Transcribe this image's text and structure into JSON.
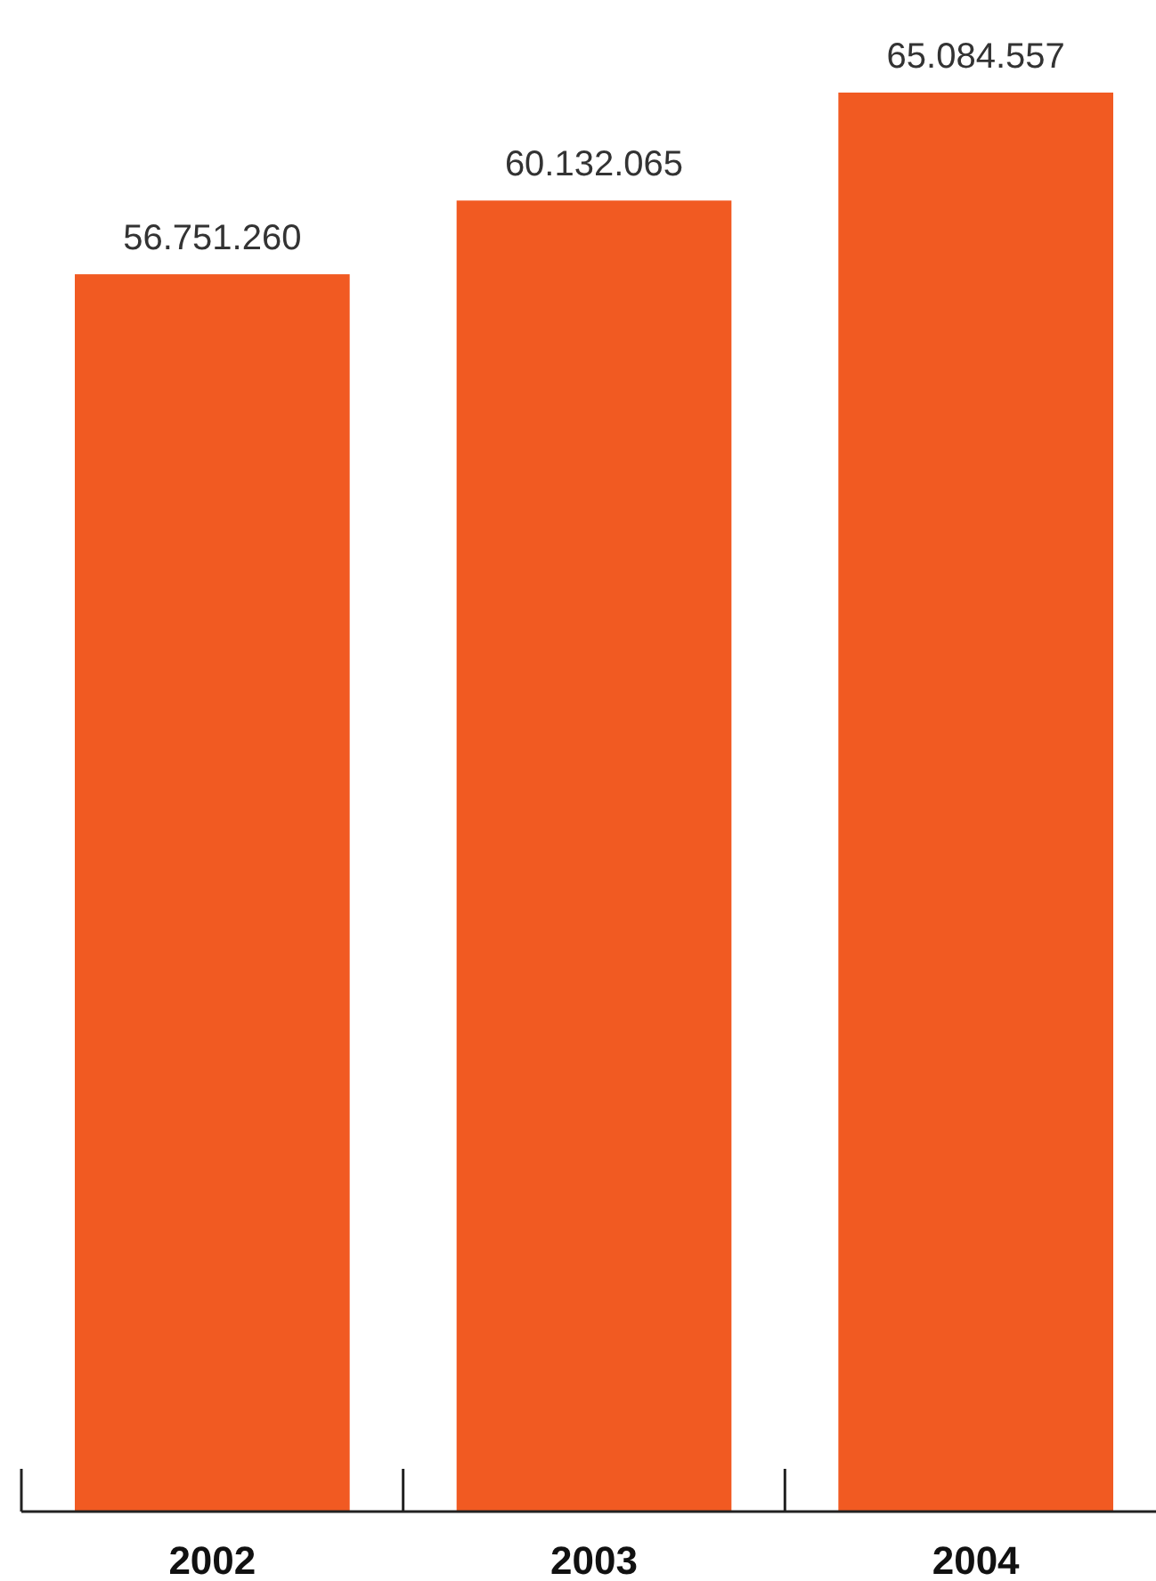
{
  "chart_data": {
    "type": "bar",
    "categories": [
      "2002",
      "2003",
      "2004"
    ],
    "values": [
      56751260,
      60132065,
      65084557
    ],
    "value_labels": [
      "56.751.260",
      "60.132.065",
      "65.084.557"
    ],
    "color": "#f15a22",
    "tick_labels": "x"
  }
}
